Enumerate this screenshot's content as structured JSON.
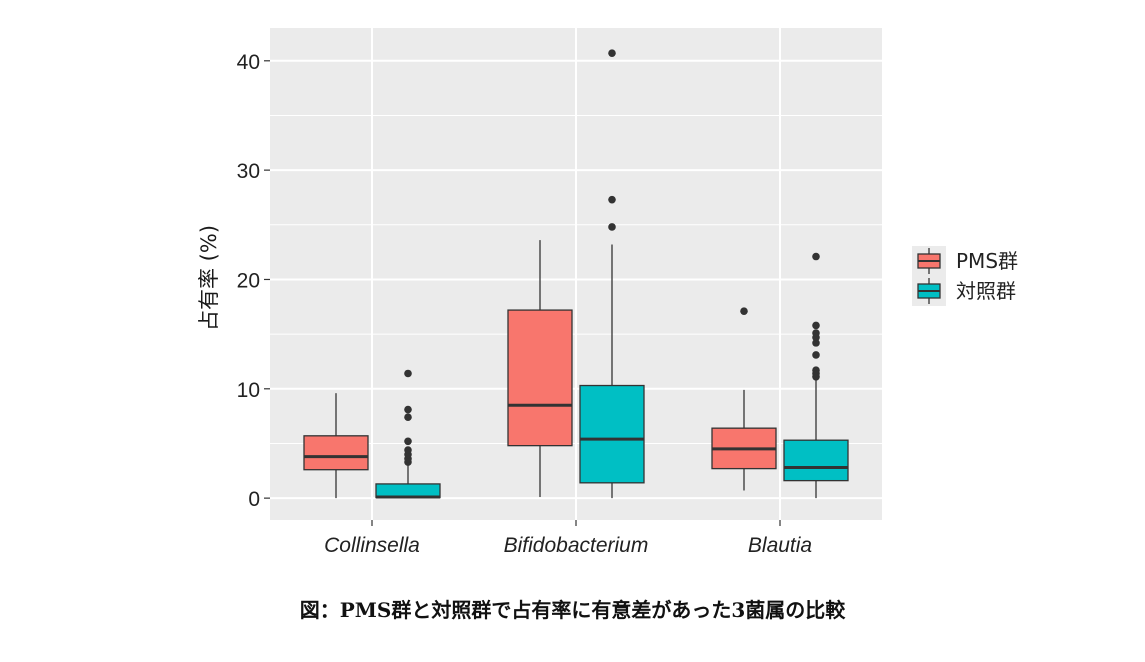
{
  "chart_data": {
    "type": "boxplot",
    "ylabel": "占有率 (%)",
    "xlabel": "",
    "ylim": [
      -2,
      43
    ],
    "yticks": [
      0,
      10,
      20,
      30,
      40
    ],
    "categories": [
      "Collinsella",
      "Bifidobacterium",
      "Blautia"
    ],
    "legend_position": "right",
    "series": [
      {
        "name": "PMS群",
        "color": "#F8766D",
        "boxes": [
          {
            "category": "Collinsella",
            "min": 0.0,
            "q1": 2.6,
            "median": 3.8,
            "q3": 5.7,
            "max": 9.6,
            "outliers": []
          },
          {
            "category": "Bifidobacterium",
            "min": 0.1,
            "q1": 4.8,
            "median": 8.5,
            "q3": 17.2,
            "max": 23.6,
            "outliers": []
          },
          {
            "category": "Blautia",
            "min": 0.7,
            "q1": 2.7,
            "median": 4.5,
            "q3": 6.4,
            "max": 9.9,
            "outliers": [
              17.1
            ]
          }
        ]
      },
      {
        "name": "対照群",
        "color": "#00BFC4",
        "boxes": [
          {
            "category": "Collinsella",
            "min": 0.0,
            "q1": 0.05,
            "median": 0.1,
            "q3": 1.3,
            "max": 3.0,
            "outliers": [
              3.3,
              3.6,
              4.0,
              4.4,
              5.2,
              7.4,
              8.1,
              11.4
            ]
          },
          {
            "category": "Bifidobacterium",
            "min": 0.0,
            "q1": 1.4,
            "median": 5.4,
            "q3": 10.3,
            "max": 23.2,
            "outliers": [
              24.8,
              27.3,
              40.7
            ]
          },
          {
            "category": "Blautia",
            "min": 0.0,
            "q1": 1.6,
            "median": 2.8,
            "q3": 5.3,
            "max": 10.8,
            "outliers": [
              11.1,
              11.4,
              11.7,
              13.1,
              14.2,
              14.7,
              15.1,
              15.8,
              22.1
            ]
          }
        ]
      }
    ]
  },
  "caption": "図：PMS群と対照群で占有率に有意差があった3菌属の比較"
}
